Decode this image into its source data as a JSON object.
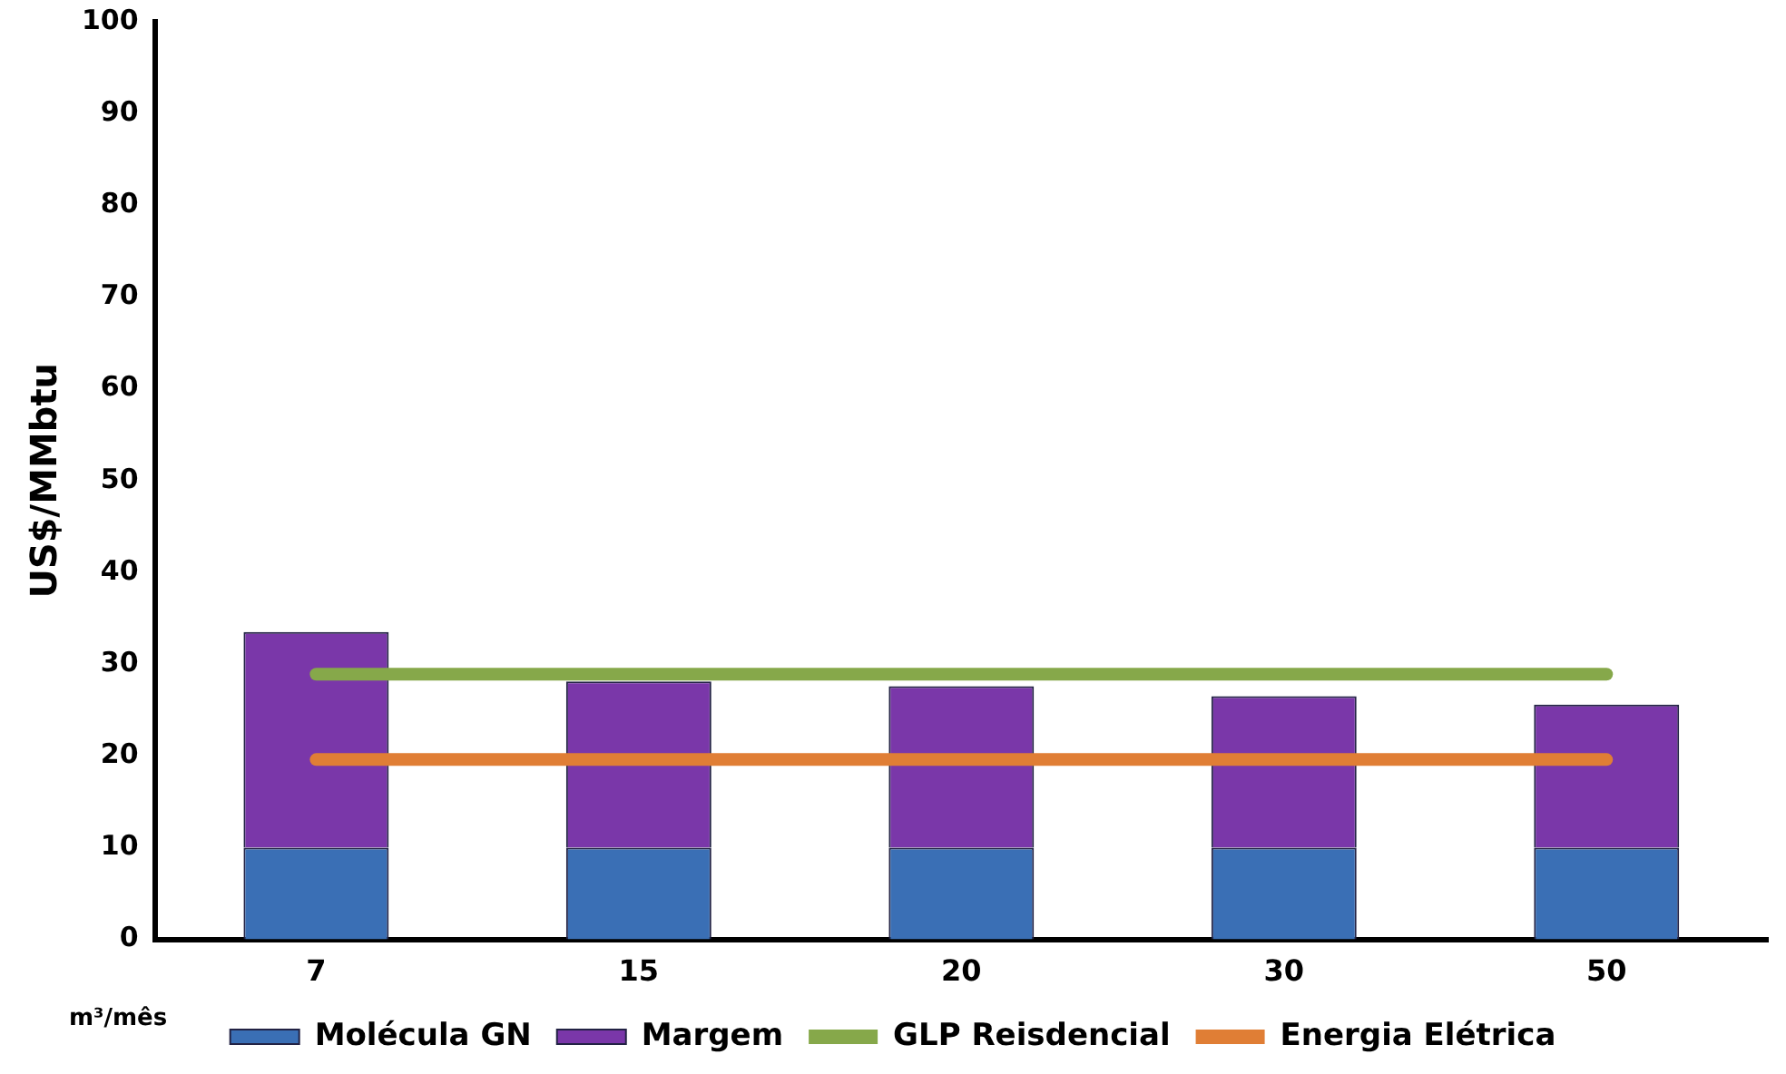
{
  "chart_data": {
    "type": "bar",
    "stacked": true,
    "ylabel": "US$/MMbtu",
    "xlabel": "m³/mês",
    "categories": [
      "7",
      "15",
      "20",
      "30",
      "50"
    ],
    "ylim": [
      0,
      100
    ],
    "yticks": [
      0,
      10,
      20,
      30,
      40,
      50,
      60,
      70,
      80,
      90,
      100
    ],
    "grid": false,
    "legend": "bottom",
    "series": [
      {
        "name": "Molécula GN",
        "color": "#3a6fb5",
        "values": [
          10,
          10,
          10,
          10,
          10
        ]
      },
      {
        "name": "Margem",
        "color": "#7a37a9",
        "values": [
          23.5,
          18.1,
          17.6,
          16.5,
          15.6
        ]
      },
      {
        "name": "GLP Reisdencial",
        "type": "line",
        "color": "#86a84a",
        "values": [
          28.9,
          28.9,
          28.9,
          28.9,
          28.9
        ]
      },
      {
        "name": "Energia Elétrica",
        "type": "line",
        "color": "#e07e35",
        "values": [
          19.6,
          19.6,
          19.6,
          19.6,
          19.6
        ]
      }
    ]
  }
}
